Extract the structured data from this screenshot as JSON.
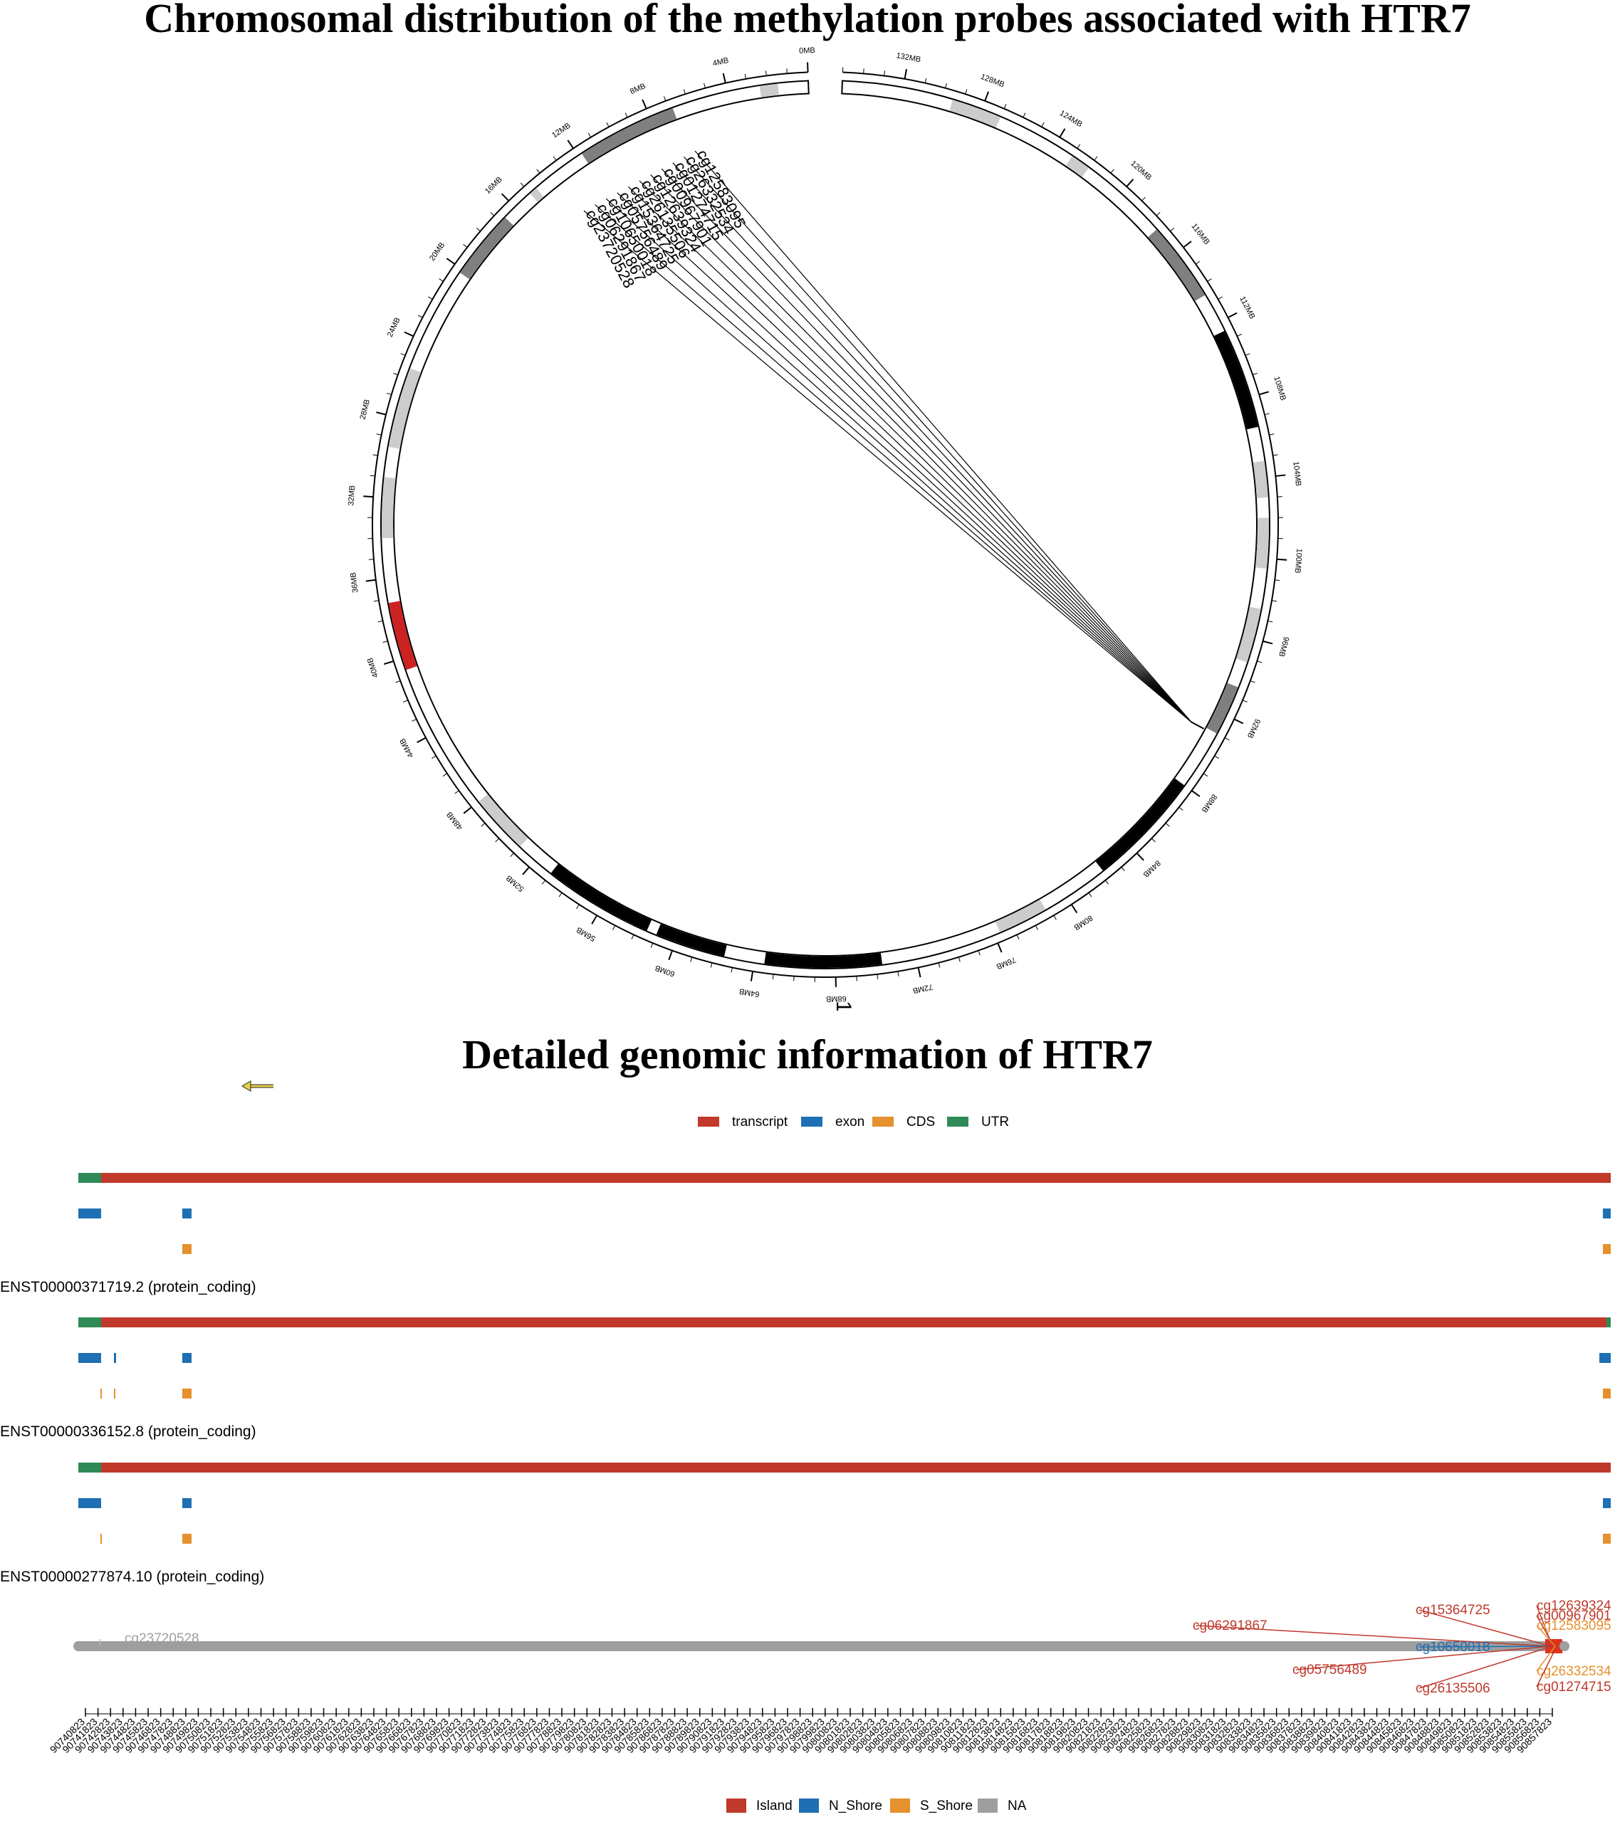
{
  "titles": {
    "circos": "Chromosomal distribution of the methylation probes associated with HTR7",
    "detail": "Detailed genomic information of HTR7"
  },
  "circos": {
    "chromosome_label": "10",
    "ticks": [
      "0MB",
      "4MB",
      "8MB",
      "12MB",
      "16MB",
      "20MB",
      "24MB",
      "28MB",
      "32MB",
      "36MB",
      "40MB",
      "44MB",
      "48MB",
      "52MB",
      "56MB",
      "60MB",
      "64MB",
      "68MB",
      "72MB",
      "76MB",
      "80MB",
      "84MB",
      "88MB",
      "92MB",
      "96MB",
      "100MB",
      "104MB",
      "108MB",
      "112MB",
      "116MB",
      "120MB",
      "124MB",
      "128MB",
      "132MB"
    ],
    "chrom_length_mb": 135,
    "bands": [
      {
        "start": 1.5,
        "end": 2.4,
        "shade": "#cccccc"
      },
      {
        "start": 6.8,
        "end": 11.8,
        "shade": "#7f7f7f"
      },
      {
        "start": 14.6,
        "end": 15.0,
        "shade": "#cccccc"
      },
      {
        "start": 16.7,
        "end": 20.2,
        "shade": "#7f7f7f"
      },
      {
        "start": 25.5,
        "end": 29.5,
        "shade": "#cccccc"
      },
      {
        "start": 31.0,
        "end": 34.0,
        "shade": "#cccccc"
      },
      {
        "start": 37.2,
        "end": 40.6,
        "shade": "#cc2222"
      },
      {
        "start": 48.0,
        "end": 51.0,
        "shade": "#cccccc"
      },
      {
        "start": 53.0,
        "end": 58.5,
        "shade": "#000000"
      },
      {
        "start": 59.0,
        "end": 62.5,
        "shade": "#000000"
      },
      {
        "start": 64.5,
        "end": 70.3,
        "shade": "#000000"
      },
      {
        "start": 76.3,
        "end": 78.8,
        "shade": "#cccccc"
      },
      {
        "start": 82.2,
        "end": 88.0,
        "shade": "#000000"
      },
      {
        "start": 91.0,
        "end": 93.5,
        "shade": "#7f7f7f"
      },
      {
        "start": 94.8,
        "end": 97.5,
        "shade": "#cccccc"
      },
      {
        "start": 99.5,
        "end": 102.0,
        "shade": "#cccccc"
      },
      {
        "start": 103.0,
        "end": 104.8,
        "shade": "#cccccc"
      },
      {
        "start": 106.5,
        "end": 111.5,
        "shade": "#000000"
      },
      {
        "start": 113.5,
        "end": 117.5,
        "shade": "#7f7f7f"
      },
      {
        "start": 122.0,
        "end": 123.0,
        "shade": "#cccccc"
      },
      {
        "start": 127.0,
        "end": 129.5,
        "shade": "#cccccc"
      }
    ],
    "probe_position_mb": 90.9,
    "probes": [
      "cg12583095",
      "cg26332534",
      "cg01274715",
      "cg00967901",
      "cg12639324",
      "cg26135506",
      "cg15364725",
      "cg05756489",
      "cg10650018",
      "cg06291867",
      "cg23720528"
    ]
  },
  "gene_detail": {
    "direction_arrow": "left-arrow",
    "legend": [
      {
        "label": "transcript",
        "color": "#c0392b"
      },
      {
        "label": "exon",
        "color": "#1f6fb4"
      },
      {
        "label": "CDS",
        "color": "#e6902e"
      },
      {
        "label": "UTR",
        "color": "#2e8b57"
      }
    ],
    "transcripts": [
      {
        "label": "ENST00000371719.2 (protein_coding)"
      },
      {
        "label": "ENST00000336152.8 (protein_coding)"
      },
      {
        "label": "ENST00000277874.10 (protein_coding)"
      }
    ],
    "probes": [
      {
        "id": "cg12639324",
        "color": "#c0392b"
      },
      {
        "id": "cg00967901",
        "color": "#c0392b"
      },
      {
        "id": "cg12583095",
        "color": "#e6902e"
      },
      {
        "id": "cg15364725",
        "color": "#c0392b"
      },
      {
        "id": "cg06291867",
        "color": "#c0392b"
      },
      {
        "id": "cg10650018",
        "color": "#1f6fb4"
      },
      {
        "id": "cg05756489",
        "color": "#c0392b"
      },
      {
        "id": "cg26135506",
        "color": "#c0392b"
      },
      {
        "id": "cg26332534",
        "color": "#e6902e"
      },
      {
        "id": "cg01274715",
        "color": "#c0392b"
      },
      {
        "id": "cg23720528",
        "color": "#9e9e9e"
      }
    ],
    "coordinate_ticks_start": 90740823,
    "coordinate_ticks_step": 1000,
    "coordinate_ticks_count": 118,
    "probe_legend": [
      {
        "label": "Island",
        "color": "#c0392b"
      },
      {
        "label": "N_Shore",
        "color": "#1f6fb4"
      },
      {
        "label": "S_Shore",
        "color": "#e6902e"
      },
      {
        "label": "NA",
        "color": "#9e9e9e"
      }
    ]
  }
}
